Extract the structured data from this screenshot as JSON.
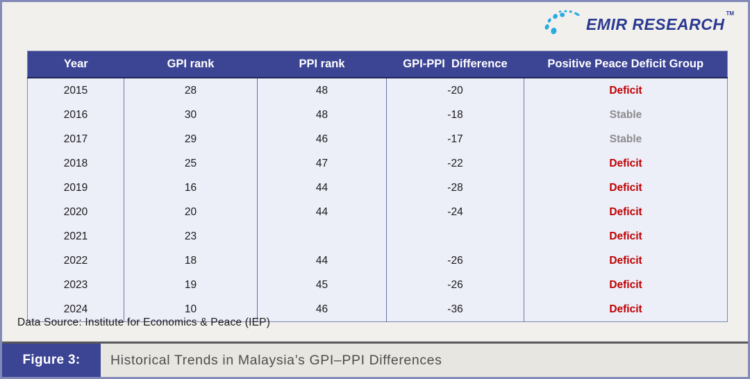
{
  "logo": {
    "text": "EMIR RESEARCH",
    "tm": "TM",
    "dot_color": "#29ABE2",
    "text_color": "#2B3990"
  },
  "table": {
    "headers": [
      "Year",
      "GPI rank",
      "PPI rank",
      "GPI-PPI  Difference",
      "Positive Peace Deficit Group"
    ],
    "rows": [
      {
        "year": "2015",
        "gpi_rank": "28",
        "ppi_rank": "48",
        "difference": "-20",
        "group": "Deficit",
        "group_style": "deficit"
      },
      {
        "year": "2016",
        "gpi_rank": "30",
        "ppi_rank": "48",
        "difference": "-18",
        "group": "Stable",
        "group_style": "stable"
      },
      {
        "year": "2017",
        "gpi_rank": "29",
        "ppi_rank": "46",
        "difference": "-17",
        "group": "Stable",
        "group_style": "stable"
      },
      {
        "year": "2018",
        "gpi_rank": "25",
        "ppi_rank": "47",
        "difference": "-22",
        "group": "Deficit",
        "group_style": "deficit"
      },
      {
        "year": "2019",
        "gpi_rank": "16",
        "ppi_rank": "44",
        "difference": "-28",
        "group": "Deficit",
        "group_style": "deficit"
      },
      {
        "year": "2020",
        "gpi_rank": "20",
        "ppi_rank": "44",
        "difference": "-24",
        "group": "Deficit",
        "group_style": "deficit"
      },
      {
        "year": "2021",
        "gpi_rank": "23",
        "ppi_rank": "",
        "difference": "",
        "group": "Deficit",
        "group_style": "deficit"
      },
      {
        "year": "2022",
        "gpi_rank": "18",
        "ppi_rank": "44",
        "difference": "-26",
        "group": "Deficit",
        "group_style": "deficit"
      },
      {
        "year": "2023",
        "gpi_rank": "19",
        "ppi_rank": "45",
        "difference": "-26",
        "group": "Deficit",
        "group_style": "deficit"
      },
      {
        "year": "2024",
        "gpi_rank": "10",
        "ppi_rank": "46",
        "difference": "-36",
        "group": "Deficit",
        "group_style": "deficit"
      }
    ]
  },
  "source_line": "Data Source: Institute for Economics & Peace (IEP)",
  "caption": {
    "label": "Figure 3:",
    "text": "Historical Trends in Malaysia’s GPI–PPI Differences"
  },
  "colors": {
    "header_bg": "#3C4494",
    "row_bg": "#ECEEF8",
    "deficit_red": "#C00000",
    "stable_gray": "#8C8C8C",
    "frame_border": "#828AB8",
    "caption_panel_bg": "#E8E6E0",
    "logo_blue": "#2B3990",
    "logo_dot_cyan": "#29ABE2"
  },
  "chart_data": {
    "type": "table",
    "title": "Historical Trends in Malaysia's GPI–PPI Differences",
    "columns": [
      "Year",
      "GPI rank",
      "PPI rank",
      "GPI-PPI Difference",
      "Positive Peace Deficit Group"
    ],
    "rows": [
      [
        2015,
        28,
        48,
        -20,
        "Deficit"
      ],
      [
        2016,
        30,
        48,
        -18,
        "Stable"
      ],
      [
        2017,
        29,
        46,
        -17,
        "Stable"
      ],
      [
        2018,
        25,
        47,
        -22,
        "Deficit"
      ],
      [
        2019,
        16,
        44,
        -28,
        "Deficit"
      ],
      [
        2020,
        20,
        44,
        -24,
        "Deficit"
      ],
      [
        2021,
        23,
        null,
        null,
        "Deficit"
      ],
      [
        2022,
        18,
        44,
        -26,
        "Deficit"
      ],
      [
        2023,
        19,
        45,
        -26,
        "Deficit"
      ],
      [
        2024,
        10,
        46,
        -36,
        "Deficit"
      ]
    ],
    "source": "Institute for Economics & Peace (IEP)"
  }
}
